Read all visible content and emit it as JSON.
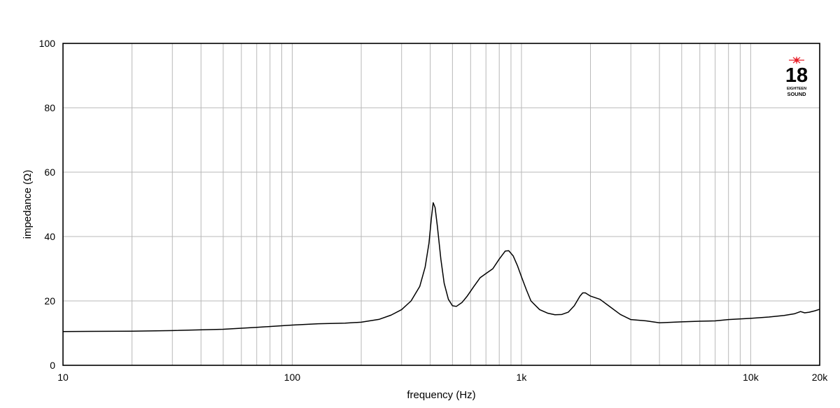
{
  "chart_data": {
    "type": "line",
    "title": "",
    "xlabel": "frequency (Hz)",
    "ylabel": "impedance (Ω)",
    "x_scale": "log",
    "xlim": [
      10,
      20000
    ],
    "ylim": [
      0,
      100
    ],
    "grid": true,
    "x_ticks": [
      {
        "value": 10,
        "label": "10"
      },
      {
        "value": 100,
        "label": "100"
      },
      {
        "value": 1000,
        "label": "1k"
      },
      {
        "value": 10000,
        "label": "10k"
      },
      {
        "value": 20000,
        "label": "20k"
      }
    ],
    "y_ticks": [
      {
        "value": 0,
        "label": "0"
      },
      {
        "value": 20,
        "label": "20"
      },
      {
        "value": 40,
        "label": "40"
      },
      {
        "value": 60,
        "label": "60"
      },
      {
        "value": 80,
        "label": "80"
      },
      {
        "value": 100,
        "label": "100"
      }
    ],
    "series": [
      {
        "color": "#000000",
        "points": [
          [
            10,
            10.5
          ],
          [
            20,
            10.6
          ],
          [
            30,
            10.8
          ],
          [
            50,
            11.2
          ],
          [
            70,
            11.8
          ],
          [
            100,
            12.5
          ],
          [
            130,
            12.9
          ],
          [
            170,
            13.1
          ],
          [
            200,
            13.4
          ],
          [
            240,
            14.3
          ],
          [
            270,
            15.6
          ],
          [
            300,
            17.3
          ],
          [
            330,
            20.0
          ],
          [
            360,
            24.5
          ],
          [
            380,
            30.5
          ],
          [
            395,
            38.0
          ],
          [
            405,
            46.0
          ],
          [
            412,
            50.5
          ],
          [
            420,
            49.0
          ],
          [
            430,
            43.0
          ],
          [
            445,
            33.0
          ],
          [
            460,
            25.5
          ],
          [
            480,
            20.5
          ],
          [
            500,
            18.5
          ],
          [
            520,
            18.3
          ],
          [
            550,
            19.5
          ],
          [
            580,
            21.5
          ],
          [
            620,
            24.5
          ],
          [
            660,
            27.2
          ],
          [
            700,
            28.5
          ],
          [
            750,
            30.0
          ],
          [
            800,
            33.0
          ],
          [
            850,
            35.5
          ],
          [
            880,
            35.6
          ],
          [
            920,
            34.0
          ],
          [
            960,
            31.0
          ],
          [
            1000,
            27.5
          ],
          [
            1050,
            23.5
          ],
          [
            1100,
            20.0
          ],
          [
            1200,
            17.3
          ],
          [
            1300,
            16.2
          ],
          [
            1400,
            15.7
          ],
          [
            1500,
            15.8
          ],
          [
            1600,
            16.5
          ],
          [
            1700,
            18.5
          ],
          [
            1800,
            21.5
          ],
          [
            1850,
            22.5
          ],
          [
            1900,
            22.5
          ],
          [
            2000,
            21.5
          ],
          [
            2200,
            20.5
          ],
          [
            2400,
            18.5
          ],
          [
            2700,
            15.8
          ],
          [
            3000,
            14.2
          ],
          [
            3500,
            13.8
          ],
          [
            4000,
            13.2
          ],
          [
            5000,
            13.5
          ],
          [
            6000,
            13.7
          ],
          [
            7000,
            13.8
          ],
          [
            8000,
            14.2
          ],
          [
            10000,
            14.6
          ],
          [
            12000,
            15.0
          ],
          [
            14000,
            15.5
          ],
          [
            15500,
            16.0
          ],
          [
            16500,
            16.7
          ],
          [
            17200,
            16.3
          ],
          [
            18000,
            16.5
          ],
          [
            19000,
            16.9
          ],
          [
            20000,
            17.4
          ]
        ]
      }
    ]
  },
  "logo": {
    "number": "18",
    "line1": "EIGHTEEN",
    "line2": "SOUND",
    "accent": "#e8202a"
  }
}
